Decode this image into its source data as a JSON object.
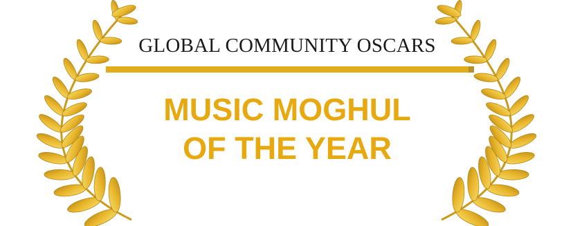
{
  "award": {
    "organization": "GLOBAL COMMUNITY OSCARS",
    "title_line_1": "MUSIC MOGHUL",
    "title_line_2": "OF THE YEAR"
  },
  "colors": {
    "gold": "#e8a80f",
    "rule": "#e1ad1c",
    "leaf_light": "#f2cd4a",
    "leaf_dark": "#c8981a",
    "text_dark": "#1a1a1a"
  },
  "icons": {
    "left": "laurel-branch-left-icon",
    "right": "laurel-branch-right-icon"
  }
}
